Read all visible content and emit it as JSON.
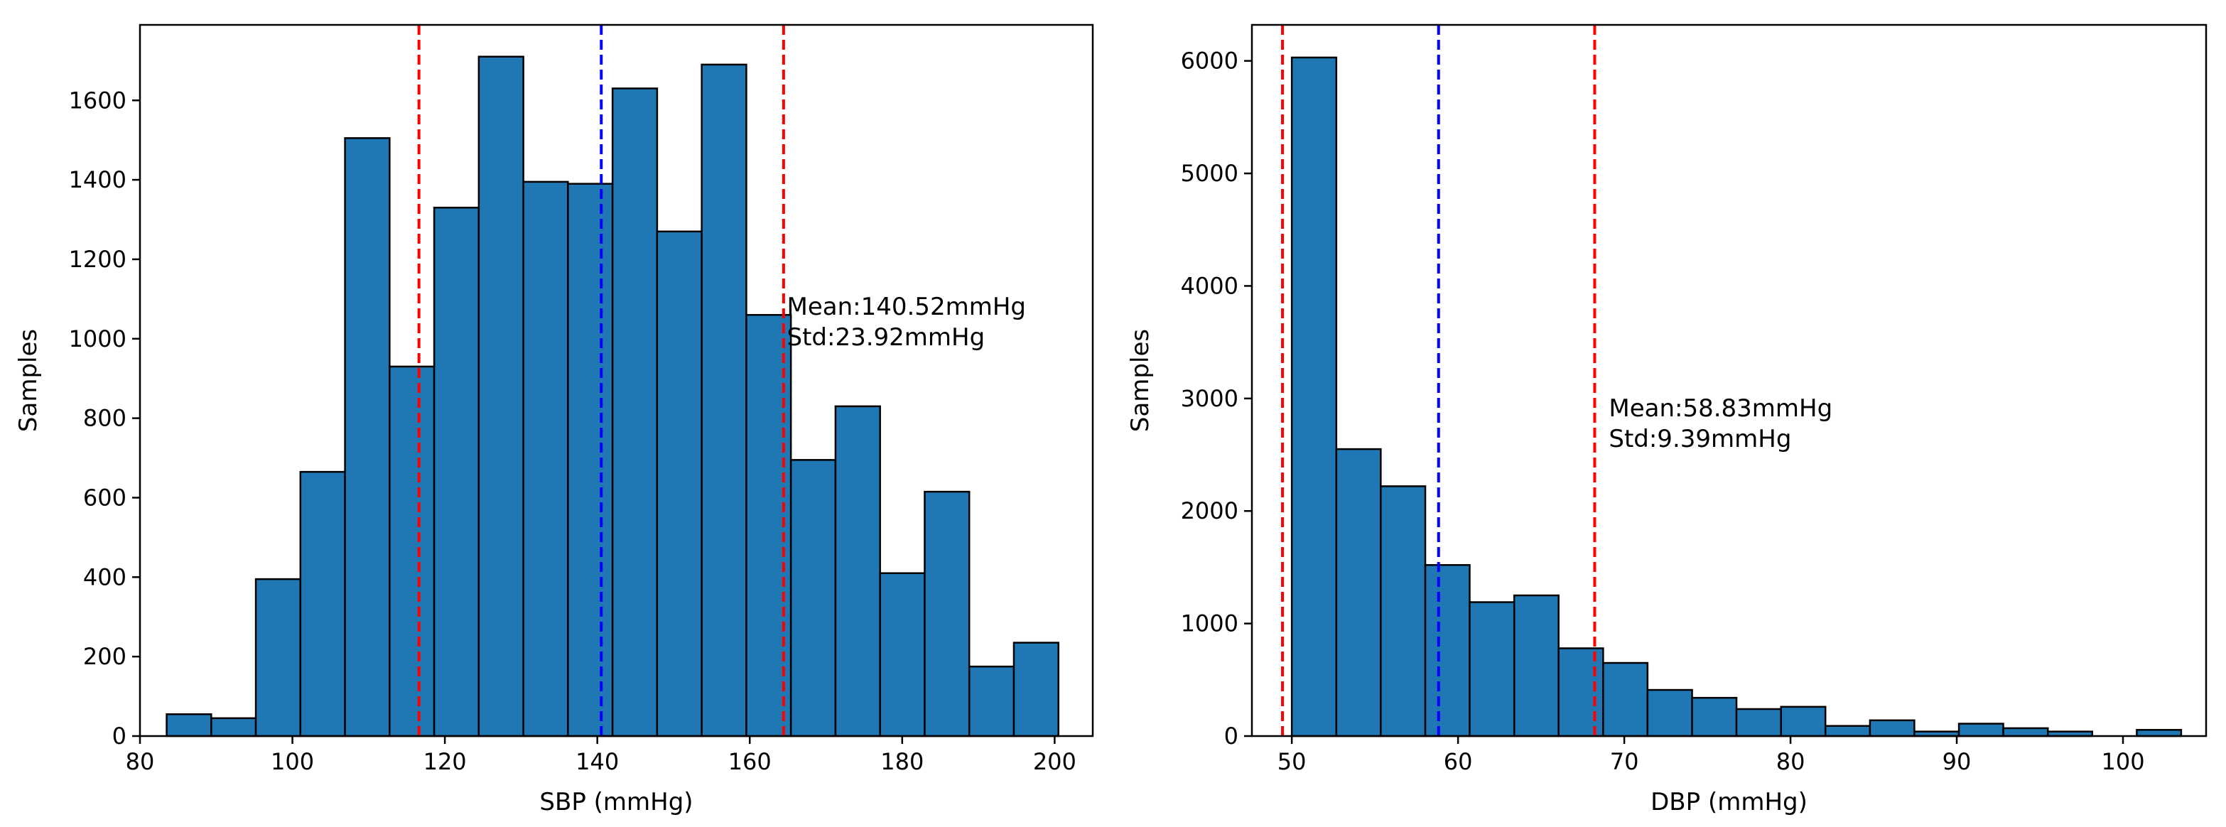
{
  "chart_data": [
    {
      "type": "bar",
      "xlabel": "SBP (mmHg)",
      "ylabel": "Samples",
      "xlim": [
        80,
        205
      ],
      "ylim": [
        0,
        1790
      ],
      "xticks": [
        80,
        100,
        120,
        140,
        160,
        180,
        200
      ],
      "yticks": [
        0,
        200,
        400,
        600,
        800,
        1000,
        1200,
        1400,
        1600
      ],
      "bin_edges": [
        83.5,
        89.35,
        95.2,
        101.05,
        106.9,
        112.75,
        118.6,
        124.45,
        130.3,
        136.15,
        142.0,
        147.85,
        153.7,
        159.55,
        165.4,
        171.25,
        177.1,
        182.95,
        188.8,
        194.65,
        200.5
      ],
      "values": [
        55,
        45,
        395,
        665,
        1505,
        930,
        1330,
        1710,
        1395,
        1390,
        1630,
        1270,
        1690,
        1060,
        695,
        830,
        410,
        615,
        175,
        235
      ],
      "bar_color": "#1f77b4",
      "edge_color": "#000000",
      "lines": [
        {
          "x": 116.6,
          "color": "#ff0000",
          "style": "dashed",
          "role": "mean-std"
        },
        {
          "x": 140.52,
          "color": "#0000ff",
          "style": "dashed",
          "role": "mean"
        },
        {
          "x": 164.44,
          "color": "#ff0000",
          "style": "dashed",
          "role": "mean+std"
        }
      ],
      "annotation": {
        "line1": "Mean:140.52mmHg",
        "line2": " Std:23.92mmHg",
        "x": 164.5,
        "y": 1060
      }
    },
    {
      "type": "bar",
      "xlabel": "DBP (mmHg)",
      "ylabel": "Samples",
      "xlim": [
        47.6,
        105.0
      ],
      "ylim": [
        0,
        6320
      ],
      "xticks": [
        50,
        60,
        70,
        80,
        90,
        100
      ],
      "yticks": [
        0,
        1000,
        2000,
        3000,
        4000,
        5000,
        6000
      ],
      "bin_edges": [
        50.0,
        52.68,
        55.35,
        58.03,
        60.7,
        63.38,
        66.05,
        68.73,
        71.4,
        74.08,
        76.75,
        79.43,
        82.1,
        84.78,
        87.45,
        90.13,
        92.8,
        95.48,
        98.15,
        100.83,
        103.5
      ],
      "values": [
        6030,
        2550,
        2220,
        1520,
        1190,
        1250,
        780,
        650,
        410,
        340,
        240,
        260,
        90,
        140,
        40,
        110,
        70,
        40,
        0,
        55
      ],
      "bar_color": "#1f77b4",
      "edge_color": "#000000",
      "lines": [
        {
          "x": 49.44,
          "color": "#ff0000",
          "style": "dashed",
          "role": "mean-std"
        },
        {
          "x": 58.83,
          "color": "#0000ff",
          "style": "dashed",
          "role": "mean"
        },
        {
          "x": 68.22,
          "color": "#ff0000",
          "style": "dashed",
          "role": "mean+std"
        }
      ],
      "annotation": {
        "line1": "Mean:58.83mmHg",
        "line2": " Std:9.39mmHg",
        "x": 68.9,
        "y": 2840
      }
    }
  ]
}
